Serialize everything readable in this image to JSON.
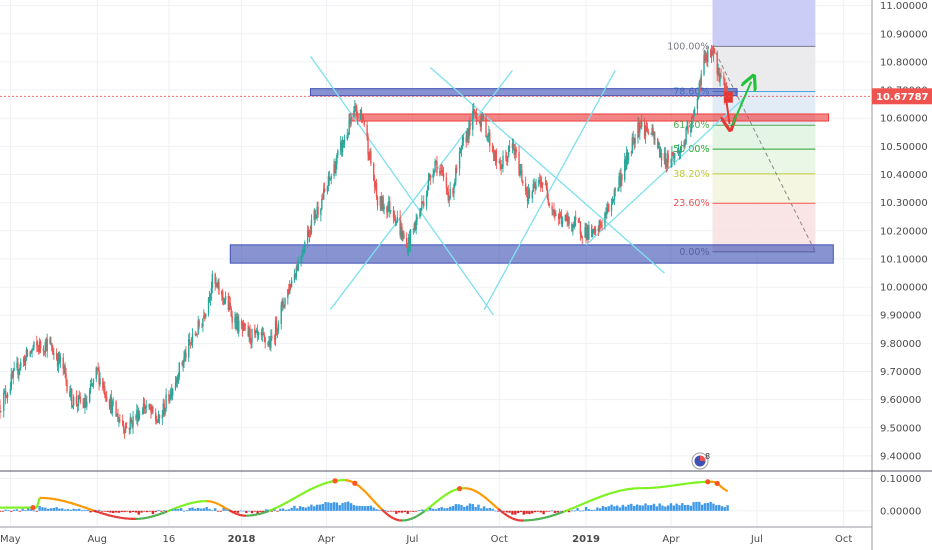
{
  "chart_data": {
    "type": "candlestick",
    "title": "",
    "xlabel": "",
    "ylabel": "",
    "ylim": [
      9.35,
      11.02
    ],
    "y_ticks": [
      {
        "value": 11.0,
        "label": "11.00000"
      },
      {
        "value": 10.9,
        "label": "10.90000"
      },
      {
        "value": 10.8,
        "label": "10.80000"
      },
      {
        "value": 10.7,
        "label": "10.70000"
      },
      {
        "value": 10.6,
        "label": "10.60000"
      },
      {
        "value": 10.5,
        "label": "10.50000"
      },
      {
        "value": 10.4,
        "label": "10.40000"
      },
      {
        "value": 10.3,
        "label": "10.30000"
      },
      {
        "value": 10.2,
        "label": "10.20000"
      },
      {
        "value": 10.1,
        "label": "10.10000"
      },
      {
        "value": 10.0,
        "label": "10.00000"
      },
      {
        "value": 9.9,
        "label": "9.90000"
      },
      {
        "value": 9.8,
        "label": "9.80000"
      },
      {
        "value": 9.7,
        "label": "9.70000"
      },
      {
        "value": 9.6,
        "label": "9.60000"
      },
      {
        "value": 9.5,
        "label": "9.50000"
      },
      {
        "value": 9.4,
        "label": "9.40000"
      }
    ],
    "x_range": [
      "2017-04-20",
      "2019-10-31"
    ],
    "x_ticks": [
      {
        "date": "2017-05-01",
        "label": "May",
        "bold": false
      },
      {
        "date": "2017-08-01",
        "label": "Aug",
        "bold": false
      },
      {
        "date": "2017-10-16",
        "label": "16",
        "bold": false
      },
      {
        "date": "2018-01-01",
        "label": "2018",
        "bold": true
      },
      {
        "date": "2018-04-01",
        "label": "Apr",
        "bold": false
      },
      {
        "date": "2018-07-01",
        "label": "Jul",
        "bold": false
      },
      {
        "date": "2018-10-01",
        "label": "Oct",
        "bold": false
      },
      {
        "date": "2019-01-01",
        "label": "2019",
        "bold": true
      },
      {
        "date": "2019-04-01",
        "label": "Apr",
        "bold": false
      },
      {
        "date": "2019-07-01",
        "label": "Jul",
        "bold": false
      },
      {
        "date": "2019-10-01",
        "label": "Oct",
        "bold": false
      }
    ],
    "price_path": [
      [
        "2017-04-20",
        9.58
      ],
      [
        "2017-05-10",
        9.72
      ],
      [
        "2017-05-25",
        9.78
      ],
      [
        "2017-06-10",
        9.8
      ],
      [
        "2017-06-25",
        9.72
      ],
      [
        "2017-07-05",
        9.6
      ],
      [
        "2017-07-20",
        9.58
      ],
      [
        "2017-08-01",
        9.7
      ],
      [
        "2017-08-20",
        9.55
      ],
      [
        "2017-09-01",
        9.5
      ],
      [
        "2017-09-20",
        9.58
      ],
      [
        "2017-10-05",
        9.52
      ],
      [
        "2017-10-20",
        9.65
      ],
      [
        "2017-11-05",
        9.78
      ],
      [
        "2017-11-20",
        9.88
      ],
      [
        "2017-12-01",
        10.02
      ],
      [
        "2017-12-15",
        9.95
      ],
      [
        "2017-12-30",
        9.85
      ],
      [
        "2018-01-15",
        9.82
      ],
      [
        "2018-02-01",
        9.8
      ],
      [
        "2018-02-15",
        9.95
      ],
      [
        "2018-03-01",
        10.08
      ],
      [
        "2018-03-15",
        10.22
      ],
      [
        "2018-04-01",
        10.35
      ],
      [
        "2018-04-15",
        10.48
      ],
      [
        "2018-05-01",
        10.62
      ],
      [
        "2018-05-10",
        10.6
      ],
      [
        "2018-05-25",
        10.3
      ],
      [
        "2018-06-10",
        10.28
      ],
      [
        "2018-06-25",
        10.14
      ],
      [
        "2018-07-10",
        10.28
      ],
      [
        "2018-07-25",
        10.45
      ],
      [
        "2018-08-10",
        10.32
      ],
      [
        "2018-08-25",
        10.52
      ],
      [
        "2018-09-05",
        10.62
      ],
      [
        "2018-09-15",
        10.58
      ],
      [
        "2018-10-01",
        10.42
      ],
      [
        "2018-10-15",
        10.5
      ],
      [
        "2018-11-01",
        10.32
      ],
      [
        "2018-11-15",
        10.38
      ],
      [
        "2018-12-01",
        10.25
      ],
      [
        "2018-12-20",
        10.22
      ],
      [
        "2019-01-10",
        10.18
      ],
      [
        "2019-01-25",
        10.28
      ],
      [
        "2019-02-10",
        10.42
      ],
      [
        "2019-02-25",
        10.58
      ],
      [
        "2019-03-10",
        10.55
      ],
      [
        "2019-03-25",
        10.45
      ],
      [
        "2019-04-10",
        10.48
      ],
      [
        "2019-04-25",
        10.6
      ],
      [
        "2019-05-05",
        10.8
      ],
      [
        "2019-05-15",
        10.83
      ],
      [
        "2019-05-28",
        10.7
      ],
      [
        "2019-06-02",
        10.68
      ]
    ],
    "current_price": {
      "value": 10.67787,
      "label": "10.67787"
    },
    "fibonacci": {
      "start_date": "2019-05-15",
      "end_date": "2019-09-01",
      "levels": [
        {
          "ratio_label": "100.00%",
          "value": 10.855,
          "color": "#787b86"
        },
        {
          "ratio_label": "78.60%",
          "value": 10.695,
          "color": "#4aa3df"
        },
        {
          "ratio_label": "61.80%",
          "value": 10.575,
          "color": "#4caf50"
        },
        {
          "ratio_label": "50.00%",
          "value": 10.49,
          "color": "#26a62f"
        },
        {
          "ratio_label": "38.20%",
          "value": 10.402,
          "color": "#c0ca33"
        },
        {
          "ratio_label": "23.60%",
          "value": 10.298,
          "color": "#ef5350"
        },
        {
          "ratio_label": "0.00%",
          "value": 10.125,
          "color": "#787b86"
        }
      ]
    },
    "zones": [
      {
        "name": "resistance",
        "from": "2018-03-15",
        "to": "2019-06-10",
        "high": 10.705,
        "low": 10.68,
        "color": "#3f51b5"
      },
      {
        "name": "support",
        "from": "2018-04-25",
        "to": "2019-09-15",
        "high": 10.615,
        "low": 10.59,
        "color": "#ef3b3b"
      },
      {
        "name": "base",
        "from": "2017-12-20",
        "to": "2019-09-20",
        "high": 10.15,
        "low": 10.085,
        "color": "#3f51b5"
      }
    ],
    "indicator": {
      "ylim": [
        -0.05,
        0.12
      ],
      "y_ticks": [
        {
          "value": 0.1,
          "label": "0.10000"
        },
        {
          "value": 0.0,
          "label": "0.00000"
        }
      ]
    },
    "annotations": {
      "badge_number": "8"
    }
  }
}
